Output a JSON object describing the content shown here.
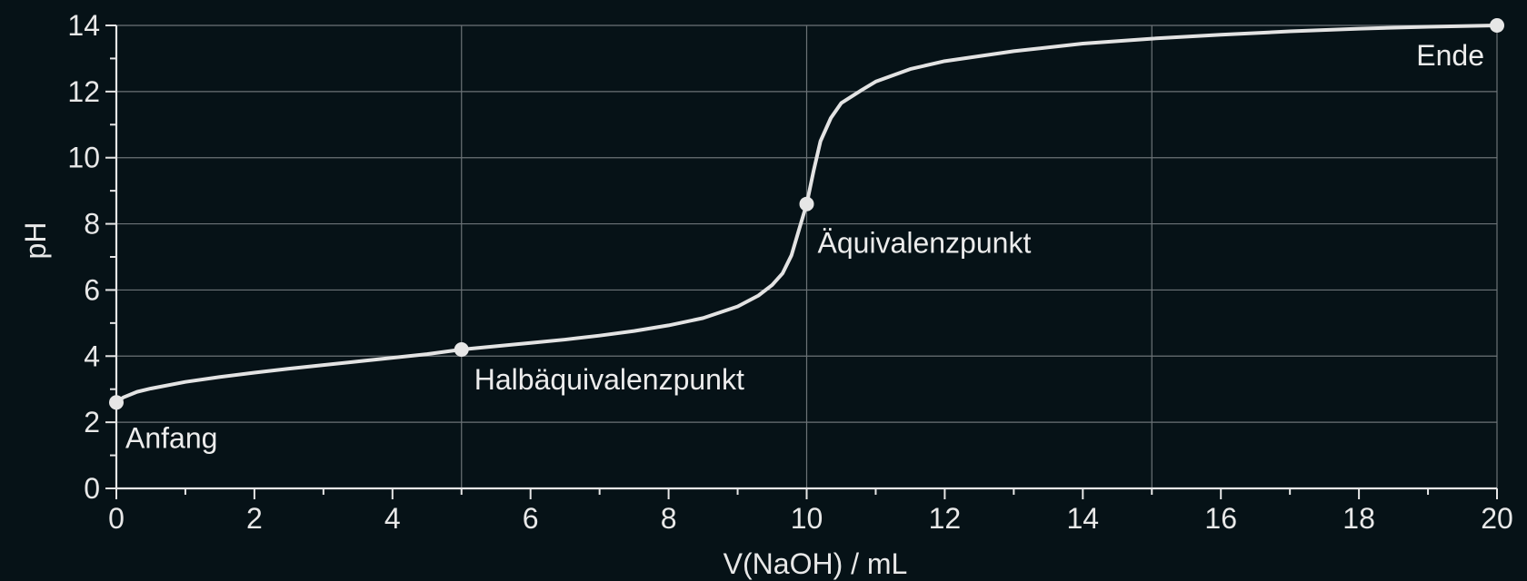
{
  "chart_data": {
    "type": "line",
    "title": "",
    "xlabel": "V(NaOH) / mL",
    "ylabel": "pH",
    "xlim": [
      0,
      20
    ],
    "ylim": [
      0,
      14
    ],
    "x_ticks": [
      "0",
      "2",
      "4",
      "6",
      "8",
      "10",
      "12",
      "14",
      "16",
      "18",
      "20"
    ],
    "y_ticks": [
      "0",
      "2",
      "4",
      "6",
      "8",
      "10",
      "12",
      "14"
    ],
    "grid": true,
    "curve": {
      "x": [
        0,
        0.1,
        0.3,
        0.5,
        1,
        1.5,
        2,
        2.5,
        3,
        3.5,
        4,
        4.5,
        5,
        5.5,
        6,
        6.5,
        7,
        7.5,
        8,
        8.5,
        9,
        9.3,
        9.5,
        9.65,
        9.78,
        9.9,
        10,
        10.1,
        10.2,
        10.35,
        10.5,
        10.8,
        11,
        11.5,
        12,
        13,
        14,
        15,
        16,
        17,
        18,
        19,
        20
      ],
      "y": [
        2.6,
        2.75,
        2.92,
        3.02,
        3.22,
        3.37,
        3.5,
        3.62,
        3.73,
        3.84,
        3.95,
        4.06,
        4.2,
        4.3,
        4.4,
        4.5,
        4.62,
        4.76,
        4.93,
        5.15,
        5.5,
        5.83,
        6.15,
        6.5,
        7.05,
        7.9,
        8.6,
        9.6,
        10.5,
        11.2,
        11.65,
        12.05,
        12.3,
        12.68,
        12.92,
        13.22,
        13.45,
        13.6,
        13.72,
        13.82,
        13.9,
        13.96,
        14.0
      ]
    },
    "points": [
      {
        "label": "Anfang",
        "x": 0,
        "y": 2.6
      },
      {
        "label": "Halbäquivalenzpunkt",
        "x": 5,
        "y": 4.2
      },
      {
        "label": "Äquivalenzpunkt",
        "x": 10,
        "y": 8.6
      },
      {
        "label": "Ende",
        "x": 20,
        "y": 14.0
      }
    ],
    "colors": {
      "background": "#061217",
      "grid": "#6c7377",
      "curve": "#e3e3e3",
      "text": "#e8e8e8"
    }
  }
}
